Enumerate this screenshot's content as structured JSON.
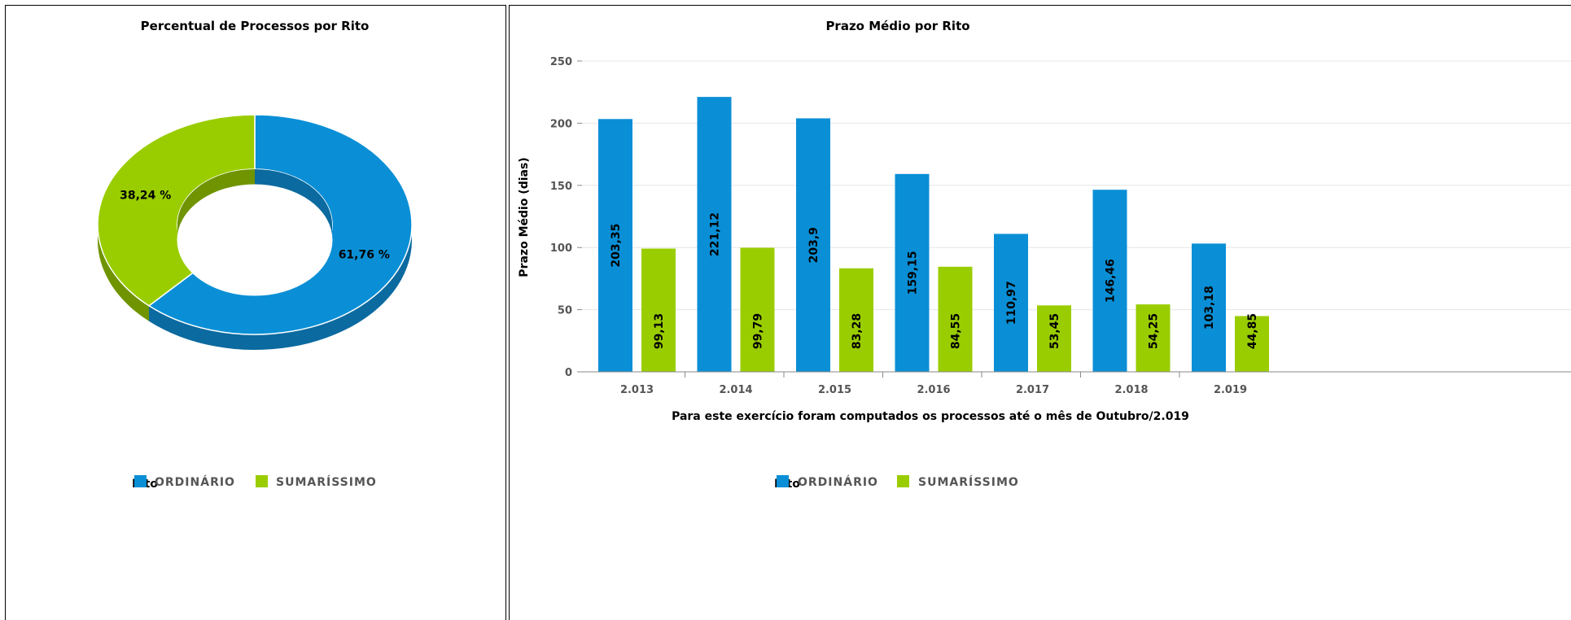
{
  "colors": {
    "ordinario": "#0a8fd6",
    "ordinario_dark": "#0b6a9f",
    "sumarissimo": "#9acd00",
    "sumarissimo_dark": "#6f9400"
  },
  "legend": {
    "title": "Rito",
    "items": [
      {
        "label": "ORDINÁRIO",
        "color": "#0a8fd6"
      },
      {
        "label": "SUMARÍSSIMO",
        "color": "#9acd00"
      }
    ]
  },
  "chart_data": [
    {
      "type": "pie",
      "title": "Percentual de Processos por Rito",
      "donut": true,
      "slices": [
        {
          "name": "ORDINÁRIO",
          "value": 61.76,
          "label": "61,76 %",
          "color": "#0a8fd6"
        },
        {
          "name": "SUMARÍSSIMO",
          "value": 38.24,
          "label": "38,24 %",
          "color": "#9acd00"
        }
      ],
      "legend": "bottom-left"
    },
    {
      "type": "bar",
      "title": "Prazo Médio por Rito",
      "xlabel": "Para este exercício foram computados os processos até o mês de Outubro/2.019",
      "ylabel": "Prazo Médio (dias)",
      "ylim": [
        0,
        250
      ],
      "yticks": [
        "0",
        "50",
        "100",
        "150",
        "200",
        "250"
      ],
      "categories": [
        "2.013",
        "2.014",
        "2.015",
        "2.016",
        "2.017",
        "2.018",
        "2.019"
      ],
      "series": [
        {
          "name": "ORDINÁRIO",
          "color": "#0a8fd6",
          "values": [
            203.35,
            221.12,
            203.9,
            159.15,
            110.97,
            146.46,
            103.18
          ],
          "labels": [
            "203,35",
            "221,12",
            "203,9",
            "159,15",
            "110,97",
            "146,46",
            "103,18"
          ]
        },
        {
          "name": "SUMARÍSSIMO",
          "color": "#9acd00",
          "values": [
            99.13,
            99.79,
            83.28,
            84.55,
            53.45,
            54.25,
            44.85
          ],
          "labels": [
            "99,13",
            "99,79",
            "83,28",
            "84,55",
            "53,45",
            "54,25",
            "44,85"
          ]
        }
      ],
      "grid": true,
      "legend": "bottom-left"
    }
  ]
}
